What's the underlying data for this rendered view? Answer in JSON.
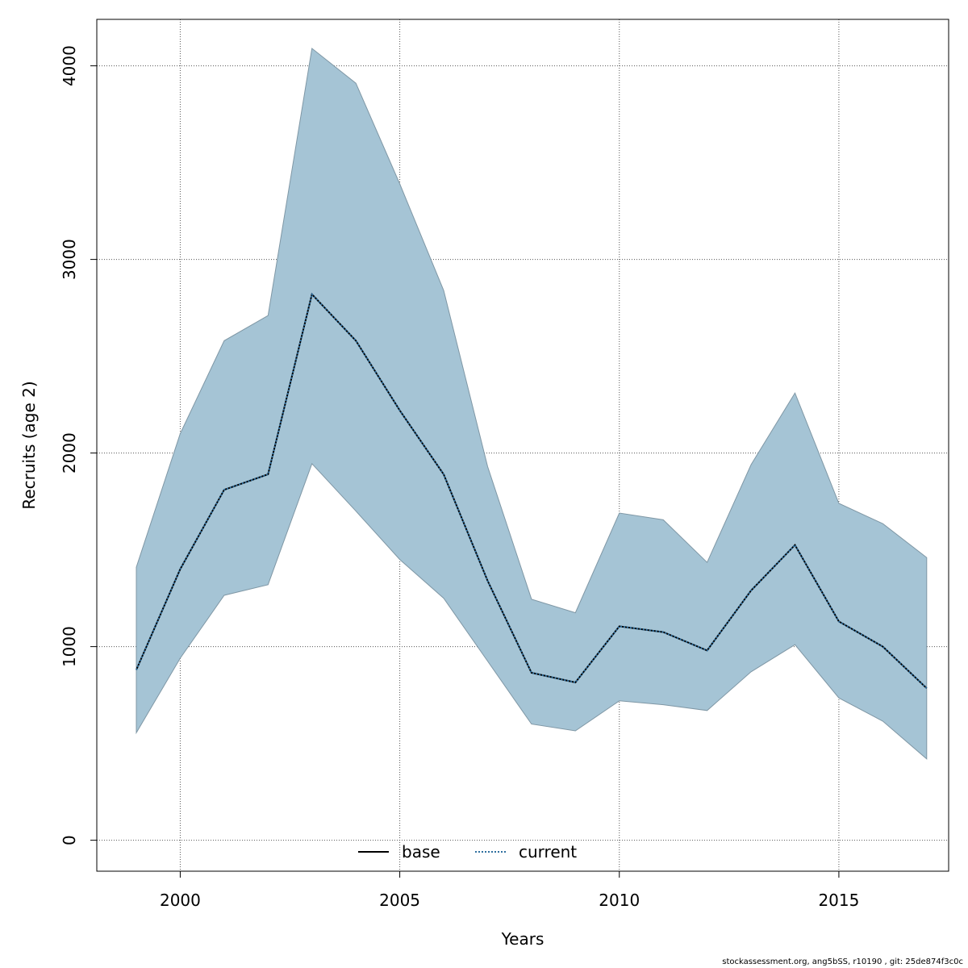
{
  "chart_data": {
    "type": "area",
    "xlabel": "Years",
    "ylabel": "Recruits (age 2)",
    "xlim": [
      1998.1,
      2017.5
    ],
    "ylim": [
      -160,
      4240
    ],
    "xticks": [
      2000,
      2005,
      2010,
      2015
    ],
    "yticks": [
      0,
      1000,
      2000,
      3000,
      4000
    ],
    "grid": true,
    "legend_position": "bottom-center",
    "x": [
      1999,
      2000,
      2001,
      2002,
      2003,
      2004,
      2005,
      2006,
      2007,
      2008,
      2009,
      2010,
      2011,
      2012,
      2013,
      2014,
      2015,
      2016,
      2017
    ],
    "series": [
      {
        "name": "base",
        "style": "solid",
        "color": "#000000",
        "values": [
          880,
          1400,
          1810,
          1890,
          2820,
          2580,
          2220,
          1890,
          1340,
          865,
          815,
          1105,
          1075,
          980,
          1290,
          1525,
          1130,
          1000,
          785
        ]
      },
      {
        "name": "current",
        "style": "dotted",
        "color": "#2f6f9f",
        "values": [
          880,
          1400,
          1810,
          1890,
          2820,
          2580,
          2220,
          1890,
          1340,
          865,
          815,
          1105,
          1075,
          980,
          1290,
          1525,
          1130,
          1000,
          785
        ]
      }
    ],
    "band": {
      "color": "#a5c4d5",
      "upper": [
        1410,
        2100,
        2580,
        2710,
        4090,
        3910,
        3390,
        2840,
        1930,
        1245,
        1175,
        1690,
        1655,
        1435,
        1940,
        2310,
        1740,
        1635,
        1460
      ],
      "lower": [
        555,
        940,
        1265,
        1320,
        1945,
        1700,
        1450,
        1250,
        925,
        600,
        565,
        720,
        700,
        670,
        870,
        1010,
        735,
        615,
        420
      ]
    }
  },
  "footer": {
    "text": "stockassessment.org, ang5bSS, r10190 , git: 25de874f3c0c"
  }
}
